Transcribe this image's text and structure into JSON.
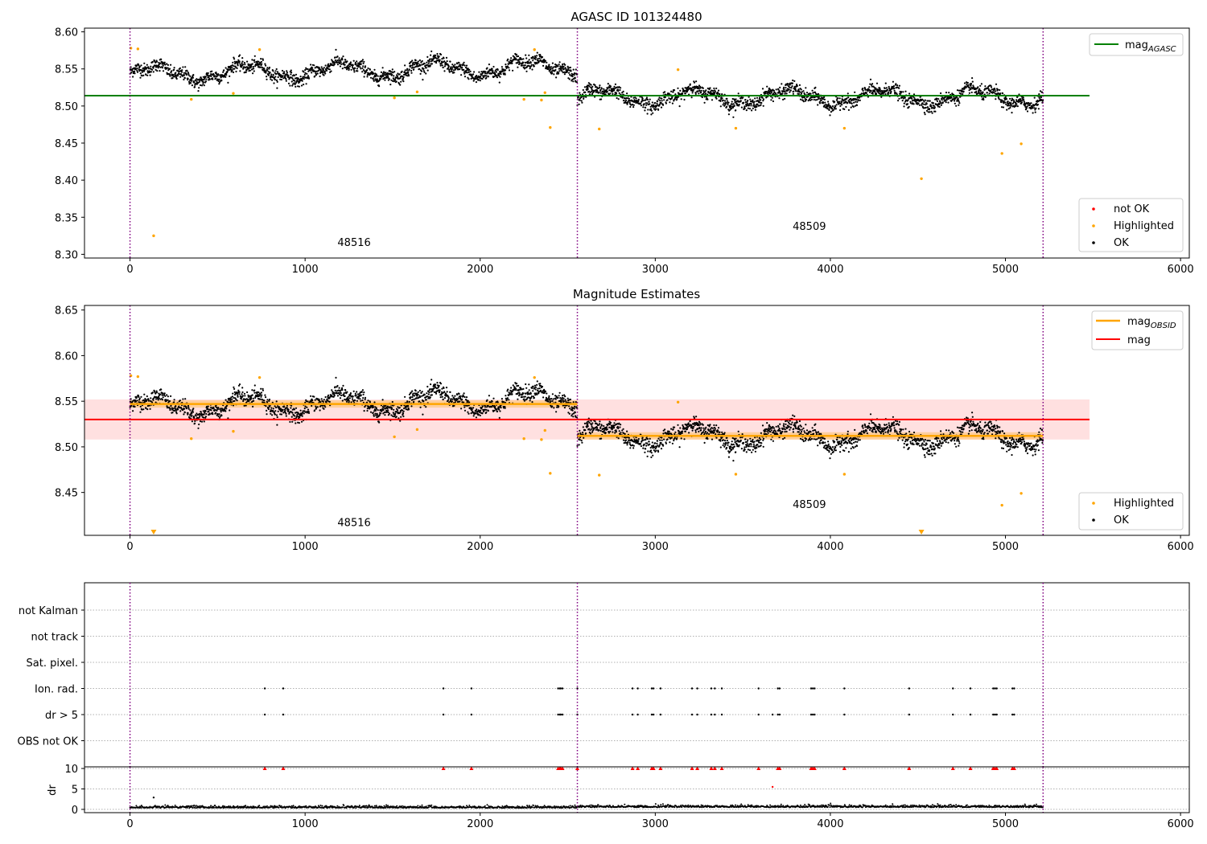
{
  "chart_data": [
    {
      "type": "scatter",
      "title": "AGASC ID 101324480",
      "xlim": [
        -260,
        6050
      ],
      "ylim": [
        8.295,
        8.605
      ],
      "xticks": [
        0,
        1000,
        2000,
        3000,
        4000,
        5000,
        6000
      ],
      "yticks": [
        8.3,
        8.35,
        8.4,
        8.45,
        8.5,
        8.55,
        8.6
      ],
      "obs_boundaries": [
        0,
        2555,
        5215
      ],
      "observations": [
        {
          "label": "48516",
          "x": 1280,
          "y": 8.311,
          "start": 0,
          "end": 2555,
          "mean": 8.547
        },
        {
          "label": "48509",
          "x": 3880,
          "y": 8.333,
          "start": 2555,
          "end": 5215,
          "mean": 8.512
        }
      ],
      "hlines": [
        {
          "name": "mag_AGASC",
          "y": 8.514,
          "x0": -260,
          "x1": 5480,
          "color": "#008000"
        }
      ],
      "highlighted": [
        [
          5,
          8.578
        ],
        [
          45,
          8.577
        ],
        [
          135,
          8.325
        ],
        [
          350,
          8.509
        ],
        [
          590,
          8.517
        ],
        [
          740,
          8.576
        ],
        [
          1510,
          8.511
        ],
        [
          1640,
          8.519
        ],
        [
          2250,
          8.509
        ],
        [
          2310,
          8.576
        ],
        [
          2350,
          8.508
        ],
        [
          2370,
          8.518
        ],
        [
          2400,
          8.471
        ],
        [
          2680,
          8.469
        ],
        [
          3130,
          8.549
        ],
        [
          3460,
          8.47
        ],
        [
          4080,
          8.47
        ],
        [
          4520,
          8.402
        ],
        [
          4980,
          8.436
        ],
        [
          5090,
          8.449
        ]
      ],
      "legend": {
        "lines": [
          {
            "label": "mag",
            "sub": "AGASC",
            "color": "#008000"
          }
        ],
        "points": [
          {
            "label": "not OK",
            "color": "#ff0000"
          },
          {
            "label": "Highlighted",
            "color": "#ffa500"
          },
          {
            "label": "OK",
            "color": "#000000"
          }
        ]
      }
    },
    {
      "type": "scatter",
      "title": "Magnitude Estimates",
      "xlim": [
        -260,
        6050
      ],
      "ylim": [
        8.403,
        8.655
      ],
      "xticks": [
        0,
        1000,
        2000,
        3000,
        4000,
        5000,
        6000
      ],
      "yticks": [
        8.45,
        8.5,
        8.55,
        8.6,
        8.65
      ],
      "obs_boundaries": [
        0,
        2555,
        5215
      ],
      "observations": [
        {
          "label": "48516",
          "x": 1280,
          "y": 8.413,
          "start": 0,
          "end": 2555,
          "mean": 8.547
        },
        {
          "label": "48509",
          "x": 3880,
          "y": 8.433,
          "start": 2555,
          "end": 5215,
          "mean": 8.512
        }
      ],
      "mag": {
        "y": 8.53,
        "low": 8.508,
        "high": 8.552,
        "x0": -260,
        "x1": 5480,
        "color": "#ff0000"
      },
      "obs_band_halfwidth": 0.004,
      "highlighted": [
        [
          5,
          8.578
        ],
        [
          45,
          8.577
        ],
        [
          350,
          8.509
        ],
        [
          590,
          8.517
        ],
        [
          740,
          8.576
        ],
        [
          1510,
          8.511
        ],
        [
          1640,
          8.519
        ],
        [
          2250,
          8.509
        ],
        [
          2310,
          8.576
        ],
        [
          2350,
          8.508
        ],
        [
          2370,
          8.518
        ],
        [
          2400,
          8.471
        ],
        [
          2680,
          8.469
        ],
        [
          3130,
          8.549
        ],
        [
          3460,
          8.47
        ],
        [
          4080,
          8.47
        ],
        [
          4980,
          8.436
        ],
        [
          5090,
          8.449
        ]
      ],
      "off_scale_highlighted": [
        135,
        4520
      ],
      "legend": {
        "lines": [
          {
            "label": "mag",
            "sub": "OBSID",
            "color": "#ffa500"
          },
          {
            "label": "mag",
            "sub": "",
            "color": "#ff0000"
          }
        ],
        "points": [
          {
            "label": "Highlighted",
            "color": "#ffa500"
          },
          {
            "label": "OK",
            "color": "#000000"
          }
        ]
      }
    },
    {
      "type": "scatter",
      "xlim": [
        -260,
        6050
      ],
      "obs_boundaries": [
        0,
        2555,
        5215
      ],
      "flag_labels": [
        "not Kalman",
        "not track",
        "Sat. pixel.",
        "Ion. rad.",
        "dr > 5",
        "OBS not OK"
      ],
      "flag_rows": {
        "Ion. rad.": [
          770,
          875,
          1790,
          1950,
          2445,
          2455,
          2460,
          2470,
          2555,
          2870,
          2900,
          2980,
          2990,
          3030,
          3210,
          3240,
          3320,
          3340,
          3380,
          3590,
          3700,
          3710,
          3890,
          3900,
          3910,
          4080,
          4450,
          4700,
          4800,
          4930,
          4940,
          4950,
          5040,
          5050
        ],
        "dr > 5": [
          770,
          875,
          1790,
          1950,
          2445,
          2455,
          2460,
          2470,
          2555,
          2870,
          2900,
          2980,
          2990,
          3030,
          3210,
          3240,
          3320,
          3340,
          3380,
          3590,
          3670,
          3700,
          3710,
          3890,
          3900,
          3910,
          4080,
          4450,
          4700,
          4800,
          4930,
          4940,
          4950,
          5040,
          5050
        ]
      },
      "dr": {
        "ylabel": "dr",
        "ylim": [
          -0.8,
          10.4
        ],
        "yticks": [
          0,
          5,
          10
        ],
        "clip_value": 10,
        "clipped_x": [
          770,
          875,
          1790,
          1950,
          2445,
          2455,
          2460,
          2470,
          2555,
          2870,
          2900,
          2980,
          2990,
          3030,
          3210,
          3240,
          3320,
          3340,
          3380,
          3590,
          3700,
          3710,
          3890,
          3900,
          3910,
          4080,
          4450,
          4700,
          4800,
          4930,
          4940,
          4950,
          5040,
          5050
        ],
        "outliers_ok": [
          [
            135,
            2.9
          ]
        ],
        "outliers_notok": [
          [
            3670,
            5.5
          ]
        ]
      }
    }
  ]
}
